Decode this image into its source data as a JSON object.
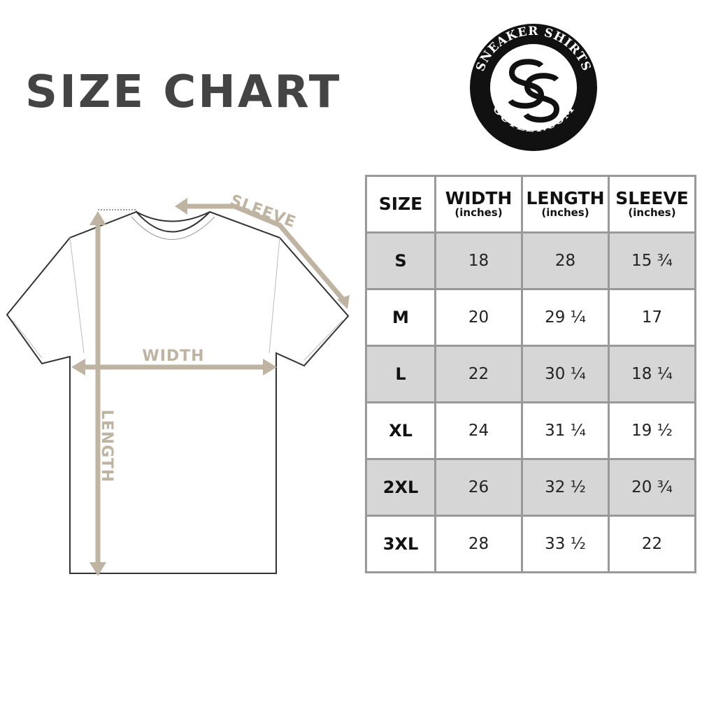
{
  "title": "SIZE CHART",
  "logo": {
    "text_top": "SNEAKER SHIRTS",
    "text_bottom": "OUTLET.COM",
    "monogram": "SS"
  },
  "diagram": {
    "sleeve_label": "SLEEVE",
    "width_label": "WIDTH",
    "length_label": "LENGTH",
    "accent_color": "#bfb3a1"
  },
  "table": {
    "headers": [
      {
        "label": "SIZE",
        "unit": ""
      },
      {
        "label": "WIDTH",
        "unit": "(inches)"
      },
      {
        "label": "LENGTH",
        "unit": "(inches)"
      },
      {
        "label": "SLEEVE",
        "unit": "(inches)"
      }
    ],
    "rows": [
      [
        "S",
        "18",
        "28",
        "15 ¾"
      ],
      [
        "M",
        "20",
        "29 ¼",
        "17"
      ],
      [
        "L",
        "22",
        "30 ¼",
        "18 ¼"
      ],
      [
        "XL",
        "24",
        "31 ¼",
        "19 ½"
      ],
      [
        "2XL",
        "26",
        "32 ½",
        "20 ¾"
      ],
      [
        "3XL",
        "28",
        "33 ½",
        "22"
      ]
    ],
    "shade_color": "#d6d6d6",
    "border_color": "#999999"
  }
}
